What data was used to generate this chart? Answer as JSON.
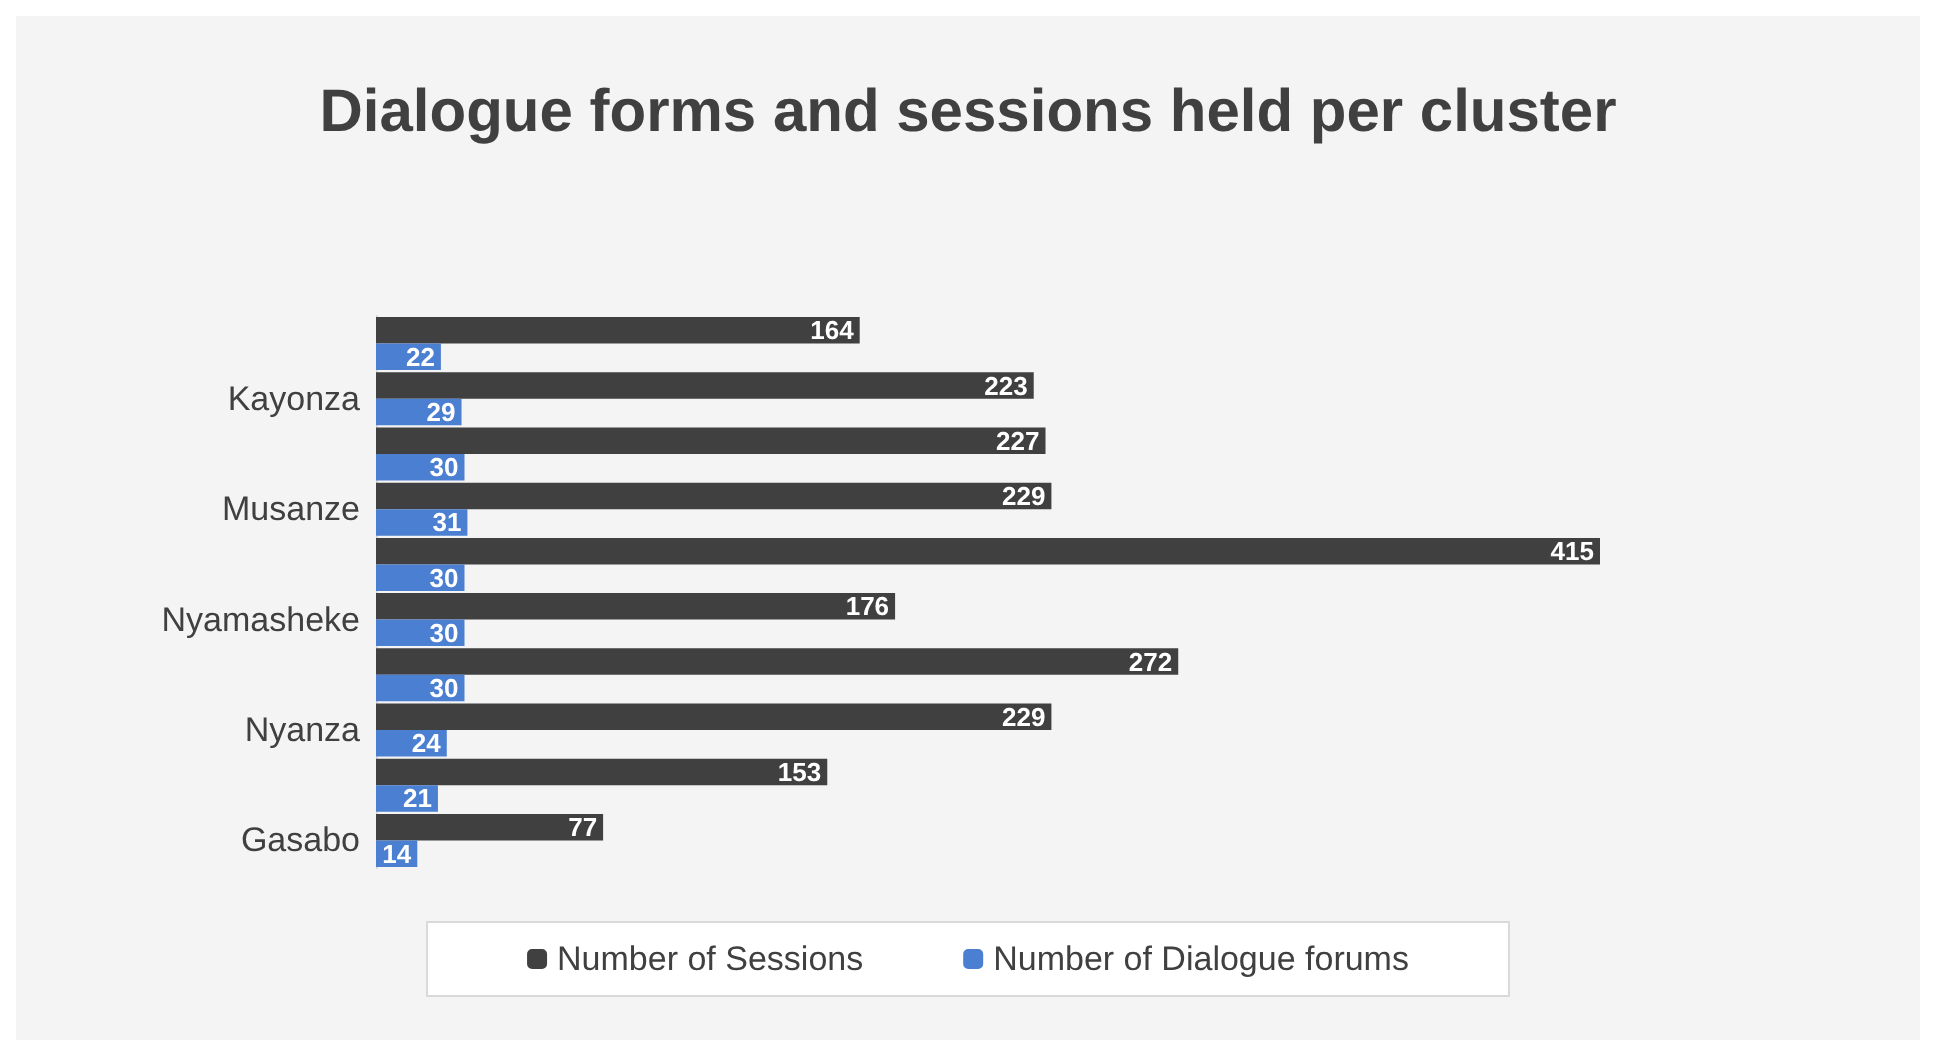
{
  "chart_data": {
    "type": "bar",
    "orientation": "horizontal",
    "title": "Dialogue forms and sessions held per cluster",
    "categories": [
      null,
      "Kayonza",
      null,
      "Musanze",
      null,
      "Nyamasheke",
      null,
      "Nyanza",
      null,
      "Gasabo"
    ],
    "series": [
      {
        "name": "Number of Sessions",
        "color": "#404040",
        "values": [
          164,
          223,
          227,
          229,
          415,
          176,
          272,
          229,
          153,
          77
        ]
      },
      {
        "name": "Number of Dialogue forums",
        "color": "#4a7fd1",
        "values": [
          22,
          29,
          30,
          31,
          30,
          30,
          30,
          24,
          21,
          14
        ]
      }
    ],
    "data_labels": true,
    "legend": "bottom"
  }
}
